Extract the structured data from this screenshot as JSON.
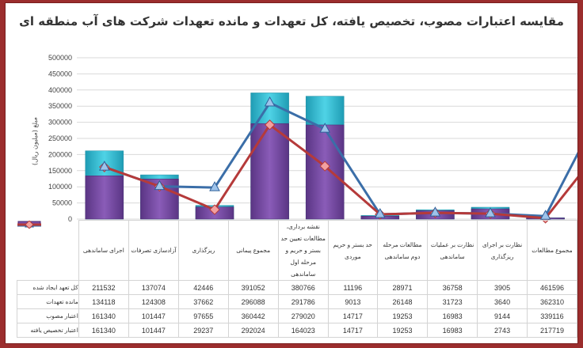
{
  "title": "مقایسه اعتبارات مصوب، تخصیص یافته، کل تعهدات و مانده تعهدات شرکت های آب منطقه ای",
  "chart_data": {
    "type": "bar+line",
    "title": "مقایسه اعتبارات مصوب، تخصیص یافته، کل تعهدات و مانده تعهدات شرکت های آب منطقه ای",
    "ylabel": "مبلغ (میلیون ریال)",
    "xlabel": "",
    "ylim": [
      0,
      500000
    ],
    "yticks": [
      0,
      50000,
      100000,
      150000,
      200000,
      250000,
      300000,
      350000,
      400000,
      450000,
      500000
    ],
    "grid": true,
    "legend": "data-table-left",
    "categories": [
      "اجرای ساماندهی",
      "آزادسازی تصرفات",
      "ریزگذاری",
      "مجموع پیمانی",
      "نقشه برداری، مطالعات تعیین حد بستر و حریم و مرحله اول ساماندهی",
      "حد بستر و حریم موردی",
      "مطالعات مرحله دوم ساماندهی",
      "نظارت بر عملیات ساماندهی",
      "نظارت بر اجرای ریزگذاری",
      "مجموع مطالعات"
    ],
    "series": [
      {
        "name": "کل تعهد ایجاد شده",
        "kind": "bar",
        "color": "#3cc5d8",
        "values": [
          211532,
          137074,
          42446,
          391052,
          380766,
          11196,
          28971,
          36758,
          3905,
          461596
        ]
      },
      {
        "name": "مانده تعهدات",
        "kind": "bar",
        "color": "#7d4fa8",
        "values": [
          134118,
          124308,
          37662,
          296088,
          291786,
          9013,
          26148,
          31723,
          3640,
          362310
        ]
      },
      {
        "name": "اعتبار مصوب",
        "kind": "line",
        "marker": "triangle",
        "color": "#3b6ea8",
        "values": [
          161340,
          101447,
          97655,
          360442,
          279020,
          14717,
          19253,
          16983,
          9144,
          339116
        ]
      },
      {
        "name": "اعتبار تخصیص یافته",
        "kind": "line",
        "marker": "diamond",
        "color": "#b53a3a",
        "values": [
          161340,
          101447,
          29237,
          292024,
          164023,
          14717,
          19253,
          16983,
          2743,
          217719
        ]
      }
    ]
  }
}
